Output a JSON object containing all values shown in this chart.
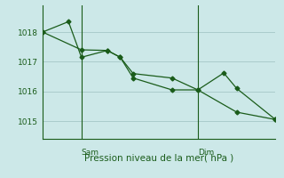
{
  "title": "Pression niveau de la mer( hPa )",
  "background_color": "#cce8e8",
  "grid_color": "#aacccc",
  "line_color": "#1a5c1a",
  "ylim": [
    1014.4,
    1018.9
  ],
  "yticks": [
    1015,
    1016,
    1017,
    1018
  ],
  "xlim": [
    0,
    9
  ],
  "sam_x": 1.5,
  "dim_x": 6.0,
  "line1_x": [
    0.0,
    1.0,
    1.5,
    2.5,
    3.0,
    3.5,
    5.0,
    6.0,
    7.5,
    9.0
  ],
  "line1_y": [
    1018.0,
    1018.35,
    1017.15,
    1017.38,
    1017.15,
    1016.45,
    1016.05,
    1016.05,
    1015.3,
    1015.05
  ],
  "line2_x": [
    0.0,
    1.5,
    2.5,
    3.0,
    3.5,
    5.0,
    6.0,
    7.0,
    7.5,
    9.0
  ],
  "line2_y": [
    1018.0,
    1017.4,
    1017.38,
    1017.15,
    1016.6,
    1016.45,
    1016.05,
    1016.62,
    1016.1,
    1015.05
  ],
  "sam_label": "Sam",
  "dim_label": "Dim",
  "figsize": [
    3.2,
    2.0
  ],
  "dpi": 100
}
